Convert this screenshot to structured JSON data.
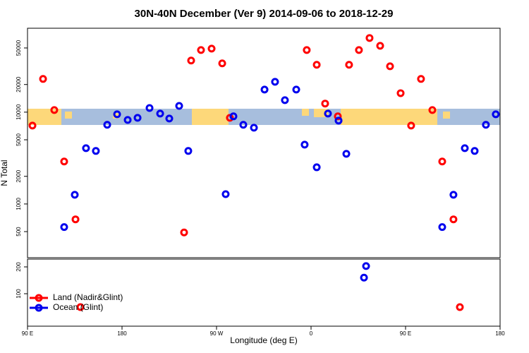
{
  "chart_data": [
    {
      "type": "scatter",
      "title": "30N-40N December (Ver 9)   2014-09-06 to 2018-12-29",
      "ylabel": "N Total",
      "log_y": true,
      "xlim": [
        90,
        540
      ],
      "ylim": [
        260,
        82000
      ],
      "yticks": [
        500,
        1000,
        2000,
        5000,
        10000,
        20000,
        50000
      ],
      "series": [
        {
          "color": "#ff0000",
          "x": [
            94.7,
            104.8,
            115.5,
            124.9,
            135.7,
            239.1,
            245.8,
            255.2,
            265.3,
            275.4,
            282.7,
            355.9,
            365.4,
            373.4,
            385.5,
            396.2,
            405.6,
            415.7,
            425.8,
            435.2,
            445.3,
            455.3,
            464.7,
            475.5,
            484.9,
            495.6
          ],
          "values": [
            7140,
            23000,
            10550,
            2900,
            680,
            490,
            36500,
            47500,
            49200,
            34000,
            8680,
            47500,
            32800,
            12400,
            9000,
            32800,
            47500,
            64200,
            52800,
            31600,
            16100,
            7140,
            23000,
            10550,
            2900,
            680
          ]
        },
        {
          "color": "#0000ee",
          "x": [
            124.9,
            135.0,
            145.7,
            155.1,
            165.9,
            175.3,
            185.4,
            194.8,
            206.2,
            216.3,
            225.0,
            234.4,
            243.1,
            278.7,
            286.1,
            295.5,
            305.6,
            315.7,
            325.7,
            335.1,
            345.9,
            353.9,
            365.4,
            376.1,
            386.2,
            393.6,
            484.9,
            495.6,
            506.4,
            515.8,
            526.5,
            535.9
          ],
          "values": [
            560,
            1260,
            4050,
            3780,
            7280,
            9480,
            8220,
            8680,
            11100,
            9650,
            8520,
            11700,
            3780,
            1280,
            9000,
            7280,
            6770,
            17600,
            21400,
            13500,
            17600,
            4430,
            2510,
            9650,
            8090,
            3520,
            560,
            1260,
            4050,
            3780,
            7280,
            9480
          ]
        }
      ]
    },
    {
      "type": "scatter",
      "xlabel": "Longitude (deg E)",
      "xlim": [
        90,
        540
      ],
      "ylim": [
        -21,
        229
      ],
      "xticks": [
        {
          "value": 90,
          "label": "90 E"
        },
        180,
        {
          "value": 270,
          "label": "90 W"
        },
        {
          "value": 360,
          "label": "0"
        },
        {
          "value": 450,
          "label": "90 E"
        },
        {
          "value": 540,
          "label": "180"
        }
      ],
      "yticks": [
        100,
        200
      ],
      "legend": "lower left",
      "series": [
        {
          "name": "Land (Nadir&Glint)",
          "color": "#ff0000",
          "x": [
            140.4,
            501.7
          ],
          "values": [
            50,
            50
          ]
        },
        {
          "name": "Ocean (Glint)",
          "color": "#0000ee",
          "x": [
            410.4,
            412.4
          ],
          "values": [
            160,
            203
          ]
        }
      ]
    }
  ]
}
